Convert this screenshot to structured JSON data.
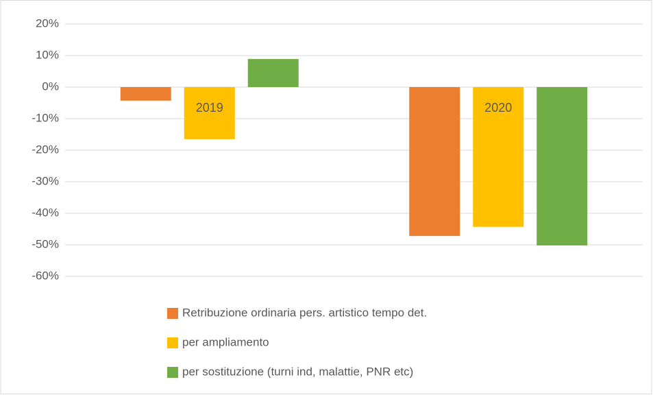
{
  "chart_data": {
    "type": "bar",
    "categories": [
      "2019",
      "2020"
    ],
    "series": [
      {
        "name": "Retribuzione ordinaria pers. artistico tempo det.",
        "color": "#ed7d31",
        "values": [
          -4.3,
          -47.2
        ]
      },
      {
        "name": "per ampliamento",
        "color": "#ffc000",
        "values": [
          -16.5,
          -44.3
        ]
      },
      {
        "name": "per sostituzione (turni ind, malattie, PNR etc)",
        "color": "#70ad47",
        "values": [
          8.9,
          -50.2
        ]
      }
    ],
    "ylim": [
      -60,
      20
    ],
    "yticks": [
      {
        "value": 20,
        "label": "20%"
      },
      {
        "value": 10,
        "label": "10%"
      },
      {
        "value": 0,
        "label": "0%"
      },
      {
        "value": -10,
        "label": "-10%"
      },
      {
        "value": -20,
        "label": "-20%"
      },
      {
        "value": -30,
        "label": "-30%"
      },
      {
        "value": -40,
        "label": "-40%"
      },
      {
        "value": -50,
        "label": "-50%"
      },
      {
        "value": -60,
        "label": "-60%"
      }
    ],
    "grid": true,
    "legend": "bottom"
  }
}
